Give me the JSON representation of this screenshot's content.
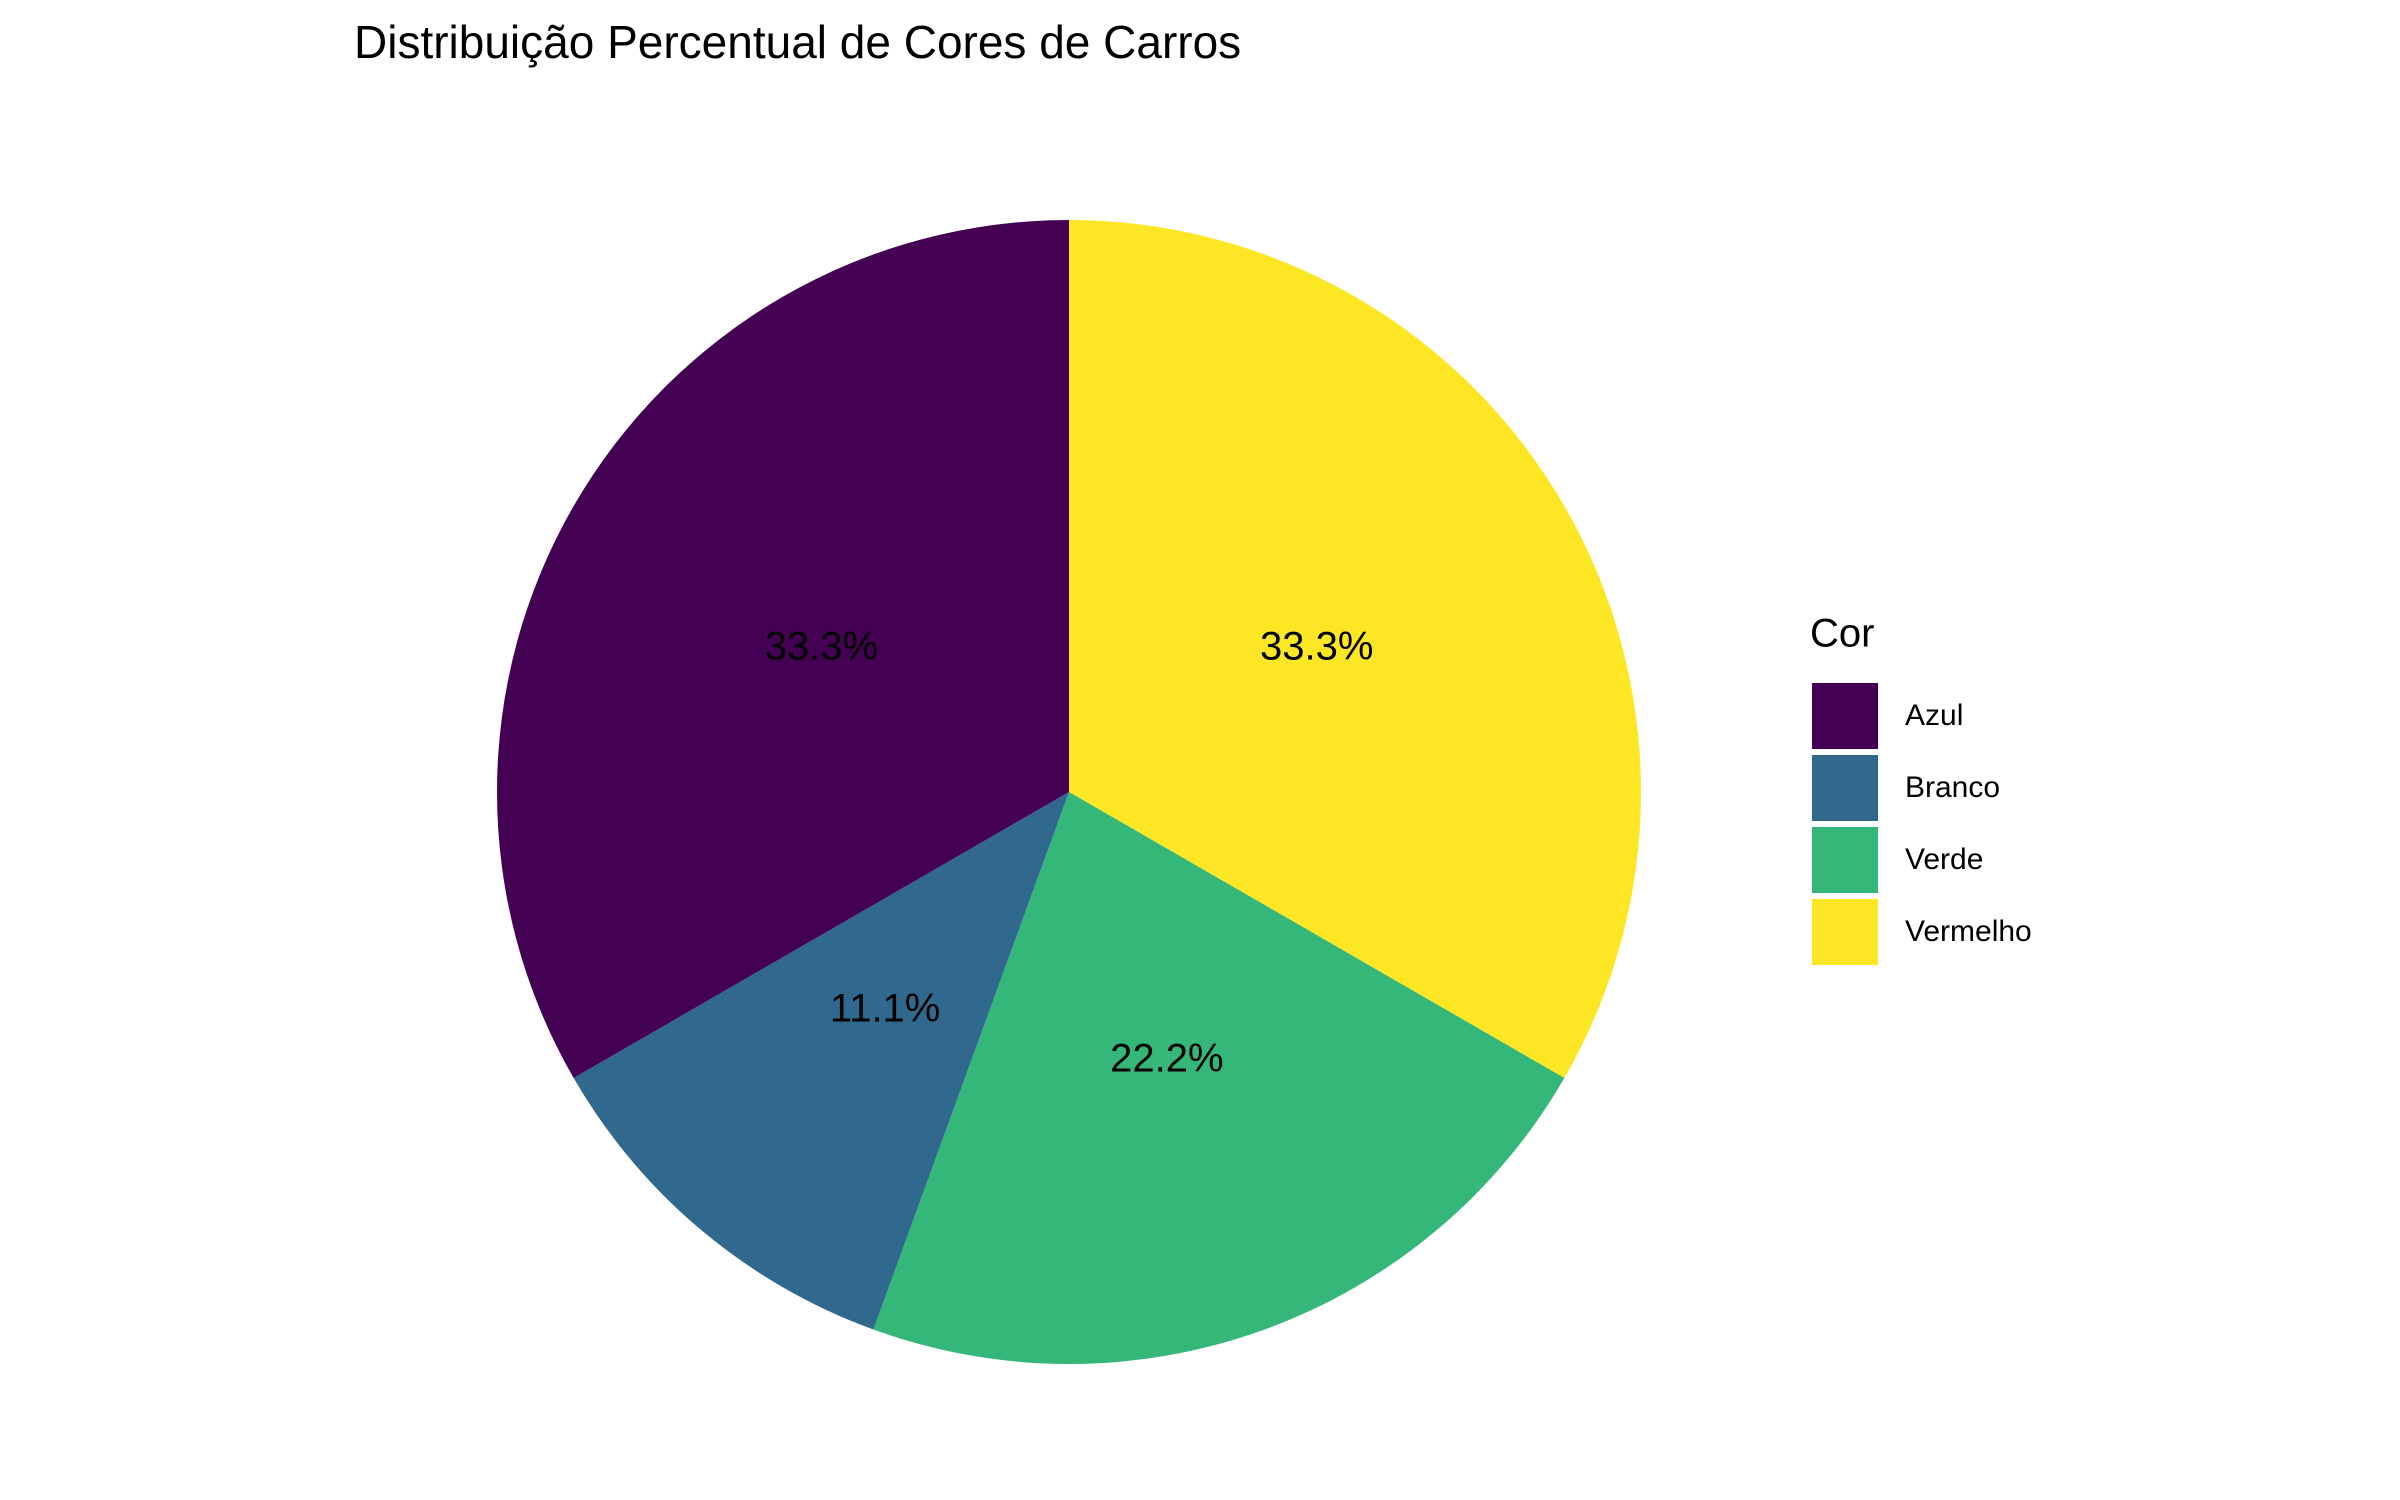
{
  "chart_data": {
    "type": "pie",
    "title": "Distribuição Percentual de Cores de Carros",
    "legend_title": "Cor",
    "categories": [
      "Azul",
      "Branco",
      "Verde",
      "Vermelho"
    ],
    "values": [
      33.3,
      11.1,
      22.2,
      33.3
    ],
    "value_labels": [
      "33.3%",
      "11.1%",
      "22.2%",
      "33.3%"
    ],
    "colors": [
      "#440154",
      "#31688e",
      "#35b779",
      "#fde725"
    ],
    "legend": "right"
  }
}
